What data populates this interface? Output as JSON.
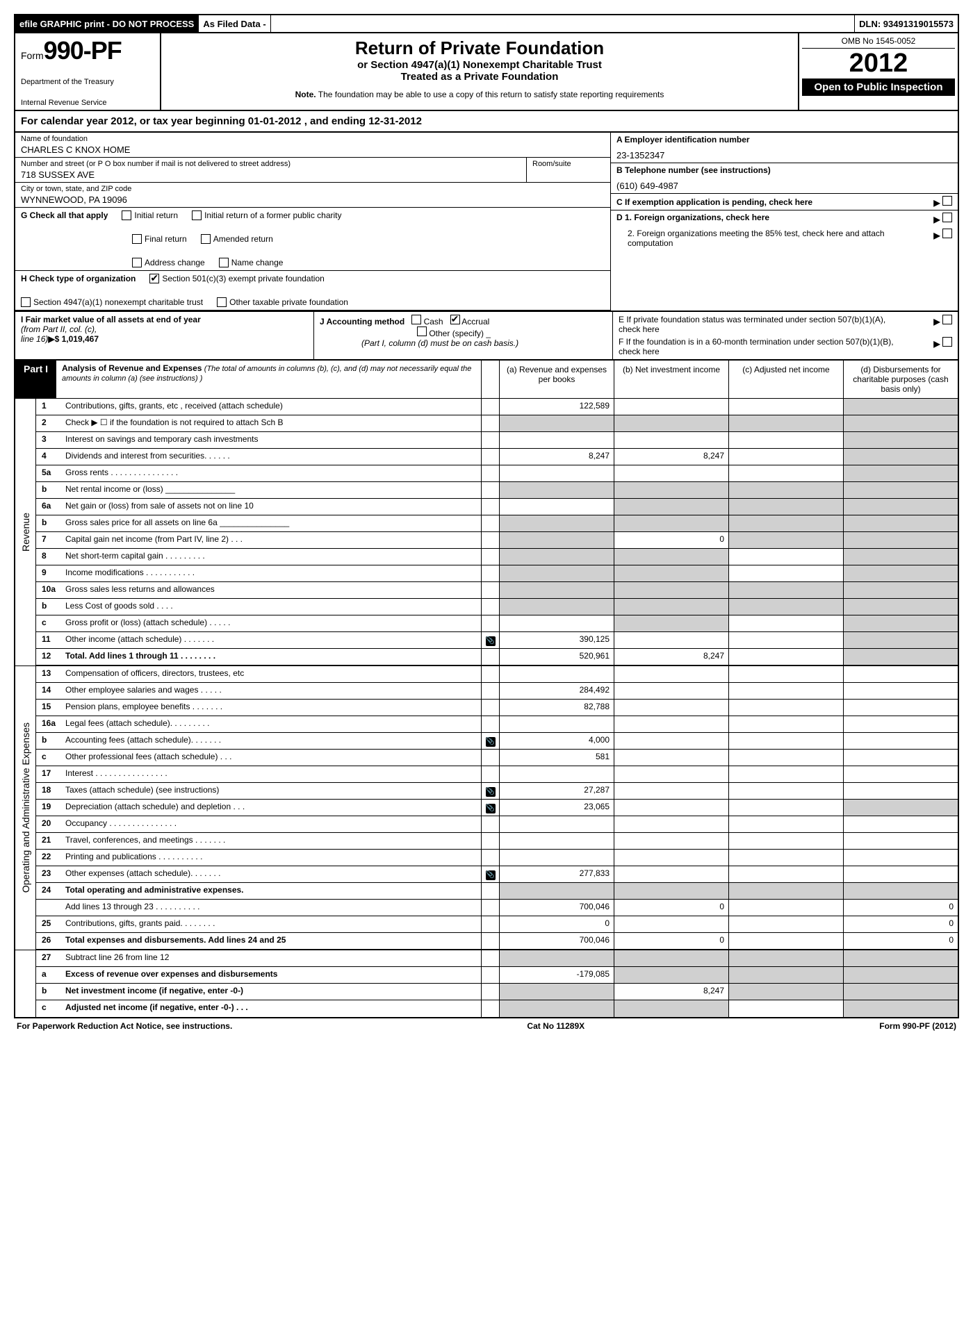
{
  "topbar": {
    "efile": "efile GRAPHIC print - DO NOT PROCESS",
    "asfiled": "As Filed Data -",
    "dln": "DLN: 93491319015573"
  },
  "header": {
    "form_prefix": "Form",
    "form_num": "990-PF",
    "dept1": "Department of the Treasury",
    "dept2": "Internal Revenue Service",
    "title": "Return of Private Foundation",
    "subtitle1": "or Section 4947(a)(1) Nonexempt Charitable Trust",
    "subtitle2": "Treated as a Private Foundation",
    "note_label": "Note.",
    "note": "The foundation may be able to use a copy of this return to satisfy state reporting requirements",
    "omb": "OMB No 1545-0052",
    "year": "2012",
    "open": "Open to Public Inspection"
  },
  "calyear": "For calendar year 2012, or tax year beginning 01-01-2012       , and ending 12-31-2012",
  "name": {
    "lbl": "Name of foundation",
    "val": "CHARLES C KNOX HOME"
  },
  "ein": {
    "lbl": "A Employer identification number",
    "val": "23-1352347"
  },
  "addr": {
    "lbl": "Number and street (or P O  box number if mail is not delivered to street address)",
    "val": "718 SUSSEX AVE",
    "room_lbl": "Room/suite"
  },
  "phone": {
    "lbl": "B Telephone number (see instructions)",
    "val": "(610) 649-4987"
  },
  "city": {
    "lbl": "City or town, state, and ZIP code",
    "val": "WYNNEWOOD, PA  19096"
  },
  "c": "C  If exemption application is pending, check here",
  "g": {
    "lbl": "G Check all that apply",
    "opts": [
      "Initial return",
      "Initial return of a former public charity",
      "Final return",
      "Amended return",
      "Address change",
      "Name change"
    ]
  },
  "d": {
    "lbl": "D 1. Foreign organizations, check here",
    "lbl2": "2. Foreign organizations meeting the 85% test, check here and attach computation"
  },
  "h": {
    "lbl": "H Check type of organization",
    "opt1": "Section 501(c)(3) exempt private foundation",
    "opt2": "Section 4947(a)(1) nonexempt charitable trust",
    "opt3": "Other taxable private foundation"
  },
  "i": {
    "lbl": "I Fair market value of all assets at end of year",
    "from": "(from Part II, col. (c),",
    "line": "line 16)",
    "val": "$  1,019,467"
  },
  "j": {
    "lbl": "J Accounting method",
    "cash": "Cash",
    "accrual": "Accrual",
    "other": "Other (specify)",
    "note": "(Part I, column (d) must be on cash basis.)"
  },
  "e": {
    "lbl": "E  If private foundation status was terminated under section 507(b)(1)(A), check here"
  },
  "f": {
    "lbl": "F  If the foundation is in a 60-month termination under section 507(b)(1)(B), check here"
  },
  "part1": {
    "label": "Part I",
    "title": "Analysis of Revenue and Expenses",
    "note": "(The total of amounts in columns (b), (c), and (d) may not necessarily equal the amounts in column (a) (see instructions) )",
    "cols": {
      "a": "(a) Revenue and expenses per books",
      "b": "(b) Net investment income",
      "c": "(c) Adjusted net income",
      "d": "(d) Disbursements for charitable purposes (cash basis only)"
    }
  },
  "sides": {
    "rev": "Revenue",
    "exp": "Operating and Administrative Expenses"
  },
  "rows": {
    "r1": {
      "n": "1",
      "d": "Contributions, gifts, grants, etc , received (attach schedule)",
      "a": "122,589"
    },
    "r2": {
      "n": "2",
      "d": "Check ▶ ☐ if the foundation is not required to attach Sch  B"
    },
    "r3": {
      "n": "3",
      "d": "Interest on savings and temporary cash investments"
    },
    "r4": {
      "n": "4",
      "d": "Dividends and interest from securities. . . . . .",
      "a": "8,247",
      "b": "8,247"
    },
    "r5a": {
      "n": "5a",
      "d": "Gross rents . . . . . . . . . . . . . . ."
    },
    "r5b": {
      "n": "b",
      "d": "Net rental income or (loss) _______________"
    },
    "r6a": {
      "n": "6a",
      "d": "Net gain or (loss) from sale of assets not on line 10"
    },
    "r6b": {
      "n": "b",
      "d": "Gross sales price for all assets on line 6a _______________"
    },
    "r7": {
      "n": "7",
      "d": "Capital gain net income (from Part IV, line 2) . . .",
      "b": "0"
    },
    "r8": {
      "n": "8",
      "d": "Net short-term capital gain . . . . . . . . ."
    },
    "r9": {
      "n": "9",
      "d": "Income modifications . . . . . . . . . . ."
    },
    "r10a": {
      "n": "10a",
      "d": "Gross sales less returns and allowances"
    },
    "r10b": {
      "n": "b",
      "d": "Less  Cost of goods sold . . . ."
    },
    "r10c": {
      "n": "c",
      "d": "Gross profit or (loss) (attach schedule) . . . . ."
    },
    "r11": {
      "n": "11",
      "d": "Other income (attach schedule)  . . . . . . .",
      "a": "390,125",
      "icon": true
    },
    "r12": {
      "n": "12",
      "d": "Total. Add lines 1 through 11  . . . . . . . .",
      "a": "520,961",
      "b": "8,247",
      "bold": true
    },
    "r13": {
      "n": "13",
      "d": "Compensation of officers, directors, trustees, etc"
    },
    "r14": {
      "n": "14",
      "d": "Other employee salaries and wages  . . . . .",
      "a": "284,492"
    },
    "r15": {
      "n": "15",
      "d": "Pension plans, employee benefits . . . . . . .",
      "a": "82,788"
    },
    "r16a": {
      "n": "16a",
      "d": "Legal fees (attach schedule). . . . . . . . ."
    },
    "r16b": {
      "n": "b",
      "d": "Accounting fees (attach schedule). . . . . . .",
      "a": "4,000",
      "icon": true
    },
    "r16c": {
      "n": "c",
      "d": "Other professional fees (attach schedule)  . . .",
      "a": "581"
    },
    "r17": {
      "n": "17",
      "d": "Interest  . . . . . . . . . . . . . . . ."
    },
    "r18": {
      "n": "18",
      "d": "Taxes (attach schedule) (see instructions)",
      "a": "27,287",
      "icon": true
    },
    "r19": {
      "n": "19",
      "d": "Depreciation (attach schedule) and depletion . . .",
      "a": "23,065",
      "icon": true
    },
    "r20": {
      "n": "20",
      "d": "Occupancy  . . . . . . . . . . . . . . ."
    },
    "r21": {
      "n": "21",
      "d": "Travel, conferences, and meetings . . . . . . ."
    },
    "r22": {
      "n": "22",
      "d": "Printing and publications . . . . . . . . . ."
    },
    "r23": {
      "n": "23",
      "d": "Other expenses (attach schedule). . . . . . .",
      "a": "277,833",
      "icon": true
    },
    "r24": {
      "n": "24",
      "d": "Total operating and administrative expenses.",
      "bold": true
    },
    "r24a": {
      "n": "",
      "d": "Add lines 13 through 23 . . . . . . . . . .",
      "a": "700,046",
      "b": "0",
      "dd": "0"
    },
    "r25": {
      "n": "25",
      "d": "Contributions, gifts, grants paid. . . . . . . .",
      "a": "0",
      "dd": "0"
    },
    "r26": {
      "n": "26",
      "d": "Total expenses and disbursements. Add lines 24 and 25",
      "a": "700,046",
      "b": "0",
      "dd": "0",
      "bold": true
    },
    "r27": {
      "n": "27",
      "d": "Subtract line 26 from line 12"
    },
    "r27a": {
      "n": "a",
      "d": "Excess of revenue over expenses and disbursements",
      "a": "-179,085",
      "bold": true
    },
    "r27b": {
      "n": "b",
      "d": "Net investment income (if negative, enter -0-)",
      "b": "8,247",
      "bold": true
    },
    "r27c": {
      "n": "c",
      "d": "Adjusted net income (if negative, enter -0-)  . . .",
      "bold": true
    }
  },
  "footer": {
    "left": "For Paperwork Reduction Act Notice, see instructions.",
    "mid": "Cat No 11289X",
    "right": "Form 990-PF (2012)"
  }
}
